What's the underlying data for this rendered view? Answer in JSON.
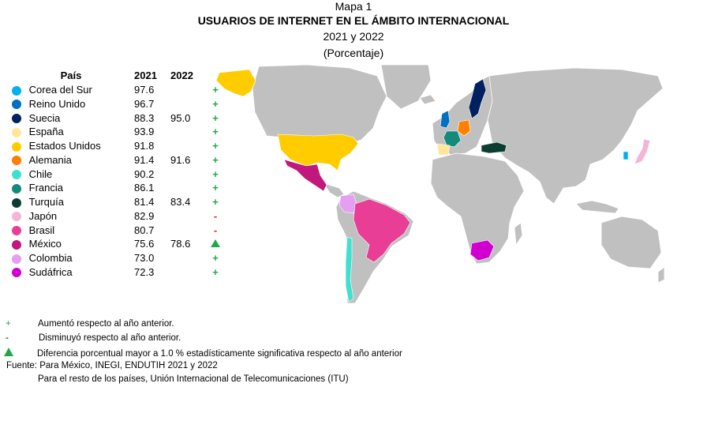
{
  "header": {
    "map_number": "Mapa 1",
    "title": "USUARIOS DE INTERNET EN EL ÁMBITO INTERNACIONAL",
    "years": "2021 y 2022",
    "unit": "(Porcentaje)"
  },
  "table": {
    "col_country": "País",
    "col_2021": "2021",
    "col_2022": "2022",
    "rows": [
      {
        "name": "Corea del Sur",
        "v2021": "97.6",
        "v2022": "",
        "sym": "+",
        "color": "#00b0f0"
      },
      {
        "name": "Reino Unido",
        "v2021": "96.7",
        "v2022": "",
        "sym": "+",
        "color": "#0070c0"
      },
      {
        "name": "Suecia",
        "v2021": "88.3",
        "v2022": "95.0",
        "sym": "+",
        "color": "#002060"
      },
      {
        "name": "España",
        "v2021": "93.9",
        "v2022": "",
        "sym": "+",
        "color": "#ffe699"
      },
      {
        "name": "Estados Unidos",
        "v2021": "91.8",
        "v2022": "",
        "sym": "+",
        "color": "#ffcc00"
      },
      {
        "name": "Alemania",
        "v2021": "91.4",
        "v2022": "91.6",
        "sym": "+",
        "color": "#ff7f00"
      },
      {
        "name": "Chile",
        "v2021": "90.2",
        "v2022": "",
        "sym": "+",
        "color": "#40e0d0"
      },
      {
        "name": "Francia",
        "v2021": "86.1",
        "v2022": "",
        "sym": "+",
        "color": "#138a7a"
      },
      {
        "name": "Turquía",
        "v2021": "81.4",
        "v2022": "83.4",
        "sym": "+",
        "color": "#0b3d33"
      },
      {
        "name": "Japón",
        "v2021": "82.9",
        "v2022": "",
        "sym": "-",
        "color": "#f4b6d6"
      },
      {
        "name": "Brasil",
        "v2021": "80.7",
        "v2022": "",
        "sym": "-",
        "color": "#e83e96"
      },
      {
        "name": "México",
        "v2021": "75.6",
        "v2022": "78.6",
        "sym": "▲",
        "color": "#c0187c"
      },
      {
        "name": "Colombia",
        "v2021": "73.0",
        "v2022": "",
        "sym": "+",
        "color": "#e59ef0"
      },
      {
        "name": "Sudáfrica",
        "v2021": "72.3",
        "v2022": "",
        "sym": "+",
        "color": "#d100d1"
      }
    ]
  },
  "map": {
    "base_color": "#c0c0c0",
    "border_color": "#ffffff"
  },
  "notes": {
    "plus_symbol": "+",
    "plus_text": "Aumentó respecto al año anterior.",
    "minus_symbol": "-",
    "minus_text": "Disminuyó respecto al año anterior.",
    "triangle_text": "Diferencia porcentual mayor a 1.0 % estadísticamente significativa respecto al año anterior",
    "source_line1": "Fuente: Para México, INEGI, ENDUTIH 2021 y 2022",
    "source_line2": "Para el resto de los países, Unión Internacional de Telecomunicaciones (ITU)"
  }
}
